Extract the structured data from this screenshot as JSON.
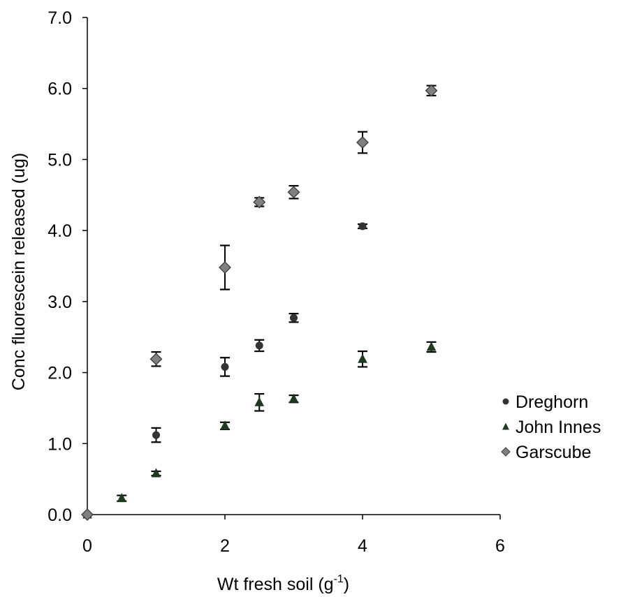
{
  "chart_data": {
    "type": "scatter",
    "xlabel": "Wt fresh soil (g",
    "xlabel_superscript": "-1",
    "xlabel_suffix": ")",
    "ylabel": "Conc fluorescein released (ug)",
    "xlim": [
      0,
      6
    ],
    "ylim": [
      0,
      7
    ],
    "x_ticks": [
      "0",
      "2",
      "4",
      "6"
    ],
    "y_ticks": [
      "0.0",
      "1.0",
      "2.0",
      "3.0",
      "4.0",
      "5.0",
      "6.0",
      "7.0"
    ],
    "grid": false,
    "legend_position": "right",
    "series": [
      {
        "name": "Dreghorn",
        "marker": "circle",
        "color": "#333333",
        "points": [
          {
            "x": 0,
            "y": 0.0,
            "err": 0.0
          },
          {
            "x": 1,
            "y": 1.12,
            "err": 0.1
          },
          {
            "x": 2,
            "y": 2.08,
            "err": 0.13
          },
          {
            "x": 2.5,
            "y": 2.38,
            "err": 0.08
          },
          {
            "x": 3,
            "y": 2.77,
            "err": 0.06
          },
          {
            "x": 4,
            "y": 4.06,
            "err": 0.03
          }
        ]
      },
      {
        "name": "John Innes",
        "marker": "triangle",
        "color": "#1f3a1f",
        "points": [
          {
            "x": 0,
            "y": 0.0,
            "err": 0.0
          },
          {
            "x": 0.5,
            "y": 0.23,
            "err": 0.04
          },
          {
            "x": 1,
            "y": 0.58,
            "err": 0.03
          },
          {
            "x": 2,
            "y": 1.25,
            "err": 0.05
          },
          {
            "x": 2.5,
            "y": 1.58,
            "err": 0.12
          },
          {
            "x": 3,
            "y": 1.63,
            "err": 0.05
          },
          {
            "x": 4,
            "y": 2.19,
            "err": 0.11
          },
          {
            "x": 5,
            "y": 2.36,
            "err": 0.07
          }
        ]
      },
      {
        "name": "Garscube",
        "marker": "diamond",
        "color": "#808080",
        "points": [
          {
            "x": 0,
            "y": 0.0,
            "err": 0.0
          },
          {
            "x": 1,
            "y": 2.19,
            "err": 0.1
          },
          {
            "x": 2,
            "y": 3.48,
            "err": 0.31
          },
          {
            "x": 2.5,
            "y": 4.4,
            "err": 0.06
          },
          {
            "x": 3,
            "y": 4.54,
            "err": 0.09
          },
          {
            "x": 4,
            "y": 5.24,
            "err": 0.15
          },
          {
            "x": 5,
            "y": 5.97,
            "err": 0.07
          }
        ]
      }
    ]
  }
}
